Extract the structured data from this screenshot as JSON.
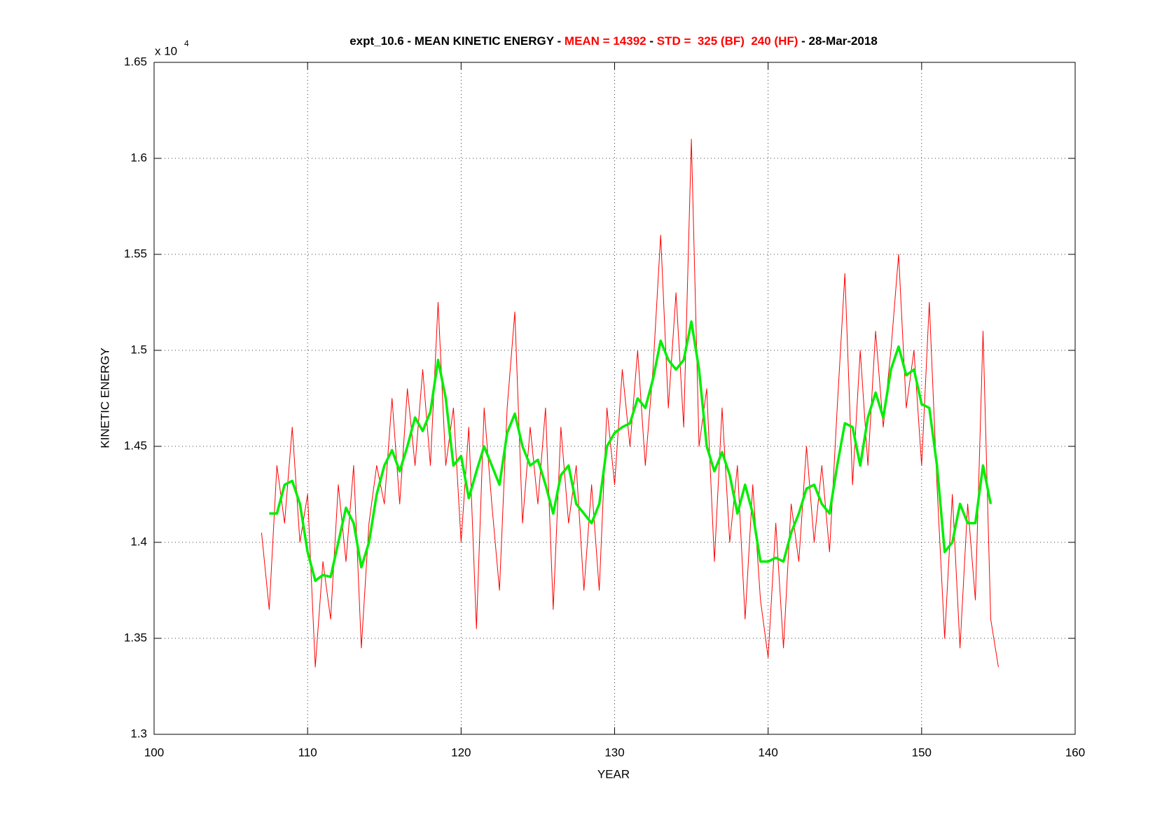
{
  "chart_data": {
    "type": "line",
    "title_parts": [
      {
        "text": "expt_10.6 - MEAN KINETIC ENERGY - ",
        "color": "#000000"
      },
      {
        "text": "MEAN = 14392",
        "color": "#ff0000"
      },
      {
        "text": " - ",
        "color": "#000000"
      },
      {
        "text": "STD =  325 (BF)  240 (HF)",
        "color": "#ff0000"
      },
      {
        "text": " - 28-Mar-2018",
        "color": "#000000"
      }
    ],
    "xlabel": "YEAR",
    "ylabel": "KINETIC ENERGY",
    "y_multiplier": {
      "base": "x 10",
      "exponent": "4"
    },
    "xlim": [
      100,
      160
    ],
    "xticks": [
      100,
      110,
      120,
      130,
      140,
      150,
      160
    ],
    "ylim": [
      1.3,
      1.65
    ],
    "yticks": [
      1.3,
      1.35,
      1.4,
      1.45,
      1.5,
      1.55,
      1.6,
      1.65
    ],
    "grid": true,
    "series": [
      {
        "color": "#ff0000",
        "width": 1,
        "x": [
          107,
          107.5,
          108,
          108.5,
          109,
          109.5,
          110,
          110.5,
          111,
          111.5,
          112,
          112.5,
          113,
          113.5,
          114,
          114.5,
          115,
          115.5,
          116,
          116.5,
          117,
          117.5,
          118,
          118.5,
          119,
          119.5,
          120,
          120.5,
          121,
          121.5,
          122,
          122.5,
          123,
          123.5,
          124,
          124.5,
          125,
          125.5,
          126,
          126.5,
          127,
          127.5,
          128,
          128.5,
          129,
          129.5,
          130,
          130.5,
          131,
          131.5,
          132,
          132.5,
          133,
          133.5,
          134,
          134.5,
          135,
          135.5,
          136,
          136.5,
          137,
          137.5,
          138,
          138.5,
          139,
          139.5,
          140,
          140.5,
          141,
          141.5,
          142,
          142.5,
          143,
          143.5,
          144,
          144.5,
          145,
          145.5,
          146,
          146.5,
          147,
          147.5,
          148,
          148.5,
          149,
          149.5,
          150,
          150.5,
          151,
          151.5,
          152,
          152.5,
          153,
          153.5,
          154,
          154.5,
          155
        ],
        "values": [
          1.405,
          1.365,
          1.44,
          1.41,
          1.46,
          1.4,
          1.425,
          1.335,
          1.39,
          1.36,
          1.43,
          1.39,
          1.44,
          1.345,
          1.41,
          1.44,
          1.42,
          1.475,
          1.42,
          1.48,
          1.44,
          1.49,
          1.44,
          1.525,
          1.44,
          1.47,
          1.4,
          1.46,
          1.355,
          1.47,
          1.42,
          1.375,
          1.47,
          1.52,
          1.41,
          1.46,
          1.42,
          1.47,
          1.365,
          1.46,
          1.41,
          1.44,
          1.375,
          1.43,
          1.375,
          1.47,
          1.43,
          1.49,
          1.45,
          1.5,
          1.44,
          1.49,
          1.56,
          1.47,
          1.53,
          1.46,
          1.61,
          1.45,
          1.48,
          1.39,
          1.47,
          1.4,
          1.44,
          1.36,
          1.43,
          1.37,
          1.34,
          1.41,
          1.345,
          1.42,
          1.39,
          1.45,
          1.4,
          1.44,
          1.395,
          1.47,
          1.54,
          1.43,
          1.5,
          1.44,
          1.51,
          1.46,
          1.5,
          1.55,
          1.47,
          1.5,
          1.44,
          1.525,
          1.43,
          1.35,
          1.425,
          1.345,
          1.42,
          1.37,
          1.51,
          1.36,
          1.335
        ]
      },
      {
        "color": "#00ee00",
        "width": 3.5,
        "x": [
          107.5,
          108,
          108.5,
          109,
          109.5,
          110,
          110.5,
          111,
          111.5,
          112,
          112.5,
          113,
          113.5,
          114,
          114.5,
          115,
          115.5,
          116,
          116.5,
          117,
          117.5,
          118,
          118.5,
          119,
          119.5,
          120,
          120.5,
          121,
          121.5,
          122,
          122.5,
          123,
          123.5,
          124,
          124.5,
          125,
          125.5,
          126,
          126.5,
          127,
          127.5,
          128,
          128.5,
          129,
          129.5,
          130,
          130.5,
          131,
          131.5,
          132,
          132.5,
          133,
          133.5,
          134,
          134.5,
          135,
          135.5,
          136,
          136.5,
          137,
          137.5,
          138,
          138.5,
          139,
          139.5,
          140,
          140.5,
          141,
          141.5,
          142,
          142.5,
          143,
          143.5,
          144,
          144.5,
          145,
          145.5,
          146,
          146.5,
          147,
          147.5,
          148,
          148.5,
          149,
          149.5,
          150,
          150.5,
          151,
          151.5,
          152,
          152.5,
          153,
          153.5,
          154,
          154.5
        ],
        "values": [
          1.415,
          1.415,
          1.43,
          1.432,
          1.42,
          1.395,
          1.38,
          1.383,
          1.382,
          1.4,
          1.418,
          1.41,
          1.387,
          1.4,
          1.425,
          1.44,
          1.448,
          1.437,
          1.45,
          1.465,
          1.458,
          1.468,
          1.495,
          1.475,
          1.44,
          1.445,
          1.423,
          1.437,
          1.45,
          1.44,
          1.43,
          1.457,
          1.467,
          1.45,
          1.44,
          1.443,
          1.43,
          1.415,
          1.435,
          1.44,
          1.42,
          1.415,
          1.41,
          1.42,
          1.45,
          1.457,
          1.46,
          1.462,
          1.475,
          1.47,
          1.485,
          1.505,
          1.495,
          1.49,
          1.495,
          1.515,
          1.49,
          1.45,
          1.437,
          1.447,
          1.435,
          1.415,
          1.43,
          1.415,
          1.39,
          1.39,
          1.392,
          1.39,
          1.405,
          1.415,
          1.428,
          1.43,
          1.42,
          1.415,
          1.44,
          1.462,
          1.46,
          1.44,
          1.465,
          1.478,
          1.465,
          1.49,
          1.502,
          1.487,
          1.49,
          1.472,
          1.47,
          1.44,
          1.395,
          1.4,
          1.42,
          1.41,
          1.41,
          1.44,
          1.42
        ]
      }
    ]
  }
}
